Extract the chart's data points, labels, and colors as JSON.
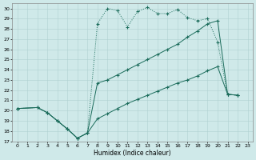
{
  "xlabel": "Humidex (Indice chaleur)",
  "bg_color": "#cfe9e9",
  "line_color": "#1a6b5a",
  "grid_color": "#b0d0d0",
  "xlim": [
    -0.5,
    23.5
  ],
  "ylim": [
    17,
    30.5
  ],
  "yticks": [
    17,
    18,
    19,
    20,
    21,
    22,
    23,
    24,
    25,
    26,
    27,
    28,
    29,
    30
  ],
  "xticks": [
    0,
    1,
    2,
    3,
    4,
    5,
    6,
    7,
    8,
    9,
    10,
    11,
    12,
    13,
    14,
    15,
    16,
    17,
    18,
    19,
    20,
    21,
    22,
    23
  ],
  "line1_x": [
    0,
    2,
    3,
    4,
    5,
    6,
    7,
    8,
    9,
    10,
    11,
    12,
    13,
    14,
    15,
    16,
    17,
    18,
    19,
    20,
    21,
    22
  ],
  "line1_y": [
    20.2,
    20.3,
    19.8,
    19.0,
    18.2,
    17.3,
    17.8,
    28.5,
    30.0,
    29.8,
    28.2,
    29.7,
    30.1,
    29.5,
    29.5,
    29.9,
    29.1,
    28.8,
    29.0,
    26.7,
    21.6,
    21.5
  ],
  "line2_x": [
    0,
    2,
    3,
    4,
    5,
    6,
    7,
    8,
    9,
    10,
    11,
    12,
    13,
    14,
    15,
    16,
    17,
    18,
    19,
    20,
    21,
    22
  ],
  "line2_y": [
    20.2,
    20.3,
    19.8,
    19.0,
    18.2,
    17.3,
    17.8,
    22.7,
    23.0,
    23.5,
    24.0,
    24.5,
    25.0,
    25.5,
    26.0,
    26.5,
    27.2,
    27.8,
    28.5,
    28.8,
    21.6,
    21.5
  ],
  "line3_x": [
    0,
    2,
    3,
    4,
    5,
    6,
    7,
    8,
    9,
    10,
    11,
    12,
    13,
    14,
    15,
    16,
    17,
    18,
    19,
    20,
    21,
    22
  ],
  "line3_y": [
    20.2,
    20.3,
    19.8,
    19.0,
    18.2,
    17.3,
    17.8,
    19.2,
    19.7,
    20.2,
    20.7,
    21.1,
    21.5,
    21.9,
    22.3,
    22.7,
    23.0,
    23.4,
    23.9,
    24.3,
    21.6,
    21.5
  ]
}
